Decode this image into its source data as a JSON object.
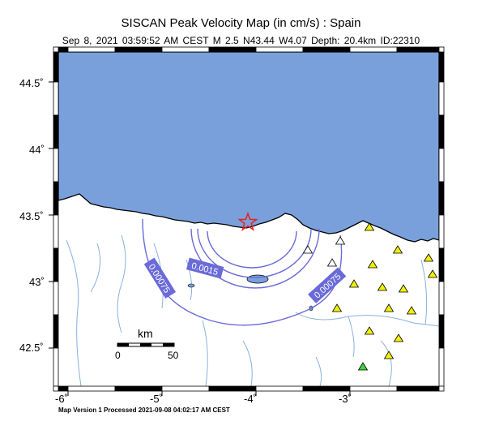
{
  "title": "SISCAN Peak Velocity Map (in cm/s) : Spain",
  "subtitle": {
    "date": "Sep  8, 2021 03:59:52 AM CEST",
    "magnitude": "M 2.5",
    "location": "N43.44 W4.07",
    "depth": "Depth: 20.4km",
    "event_id": "ID:22310"
  },
  "lat_ticks": [
    "44.5˚",
    "44˚",
    "43.5˚",
    "43˚",
    "42.5˚"
  ],
  "lon_ticks": [
    "-6˚",
    "-5˚",
    "-4˚",
    "-3˚"
  ],
  "contour_labels": [
    "0.0015",
    "0.00075",
    "0.00075"
  ],
  "scale_bar": {
    "unit": "km",
    "start": "0",
    "end": "50"
  },
  "footer": "Map Version 1 Processed 2021-09-08 04:02:17 AM CEST",
  "colors": {
    "sea": "#7aa0dc",
    "contour": "#6a6ad8",
    "rivers": "#8ab0dc",
    "epicenter": "#e82020",
    "station_yellow": "#f0f000",
    "station_green": "#40d040",
    "station_white": "#ffffff"
  },
  "epicenter_icon": "star-icon",
  "station_icon": "triangle-icon"
}
